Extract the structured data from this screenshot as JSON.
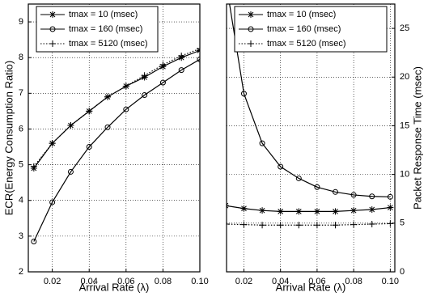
{
  "chart_data": [
    {
      "type": "line",
      "ylabel": "ECR(Energy Consumption Ratio)",
      "xlabel": "Arrival Rate (λ)",
      "x": [
        0.01,
        0.02,
        0.03,
        0.04,
        0.05,
        0.06,
        0.07,
        0.08,
        0.09,
        0.1
      ],
      "xlim": [
        0.007,
        0.1
      ],
      "xticks": [
        0.02,
        0.04,
        0.06,
        0.08,
        {
          "value": 0.1,
          "label": "0.10"
        }
      ],
      "ylim": [
        2,
        9.5
      ],
      "yticks": [
        2,
        3,
        4,
        5,
        6,
        7,
        8,
        9
      ],
      "grid": true,
      "y_axis_position": "left",
      "legend": "upper left",
      "series": [
        {
          "name": "tmax = 10 (msec)",
          "color": "#000000",
          "marker": "asterisk",
          "dash": "solid",
          "values": [
            4.9,
            5.6,
            6.1,
            6.5,
            6.9,
            7.2,
            7.45,
            7.75,
            8.0,
            8.2
          ]
        },
        {
          "name": "tmax = 160 (msec)",
          "color": "#000000",
          "marker": "circle",
          "dash": "solid",
          "values": [
            2.85,
            3.95,
            4.8,
            5.5,
            6.05,
            6.55,
            6.95,
            7.3,
            7.65,
            7.95
          ]
        },
        {
          "name": "tmax = 5120 (msec)",
          "color": "#000000",
          "marker": "plus",
          "dash": "dotted",
          "values": [
            4.95,
            5.6,
            6.1,
            6.5,
            6.9,
            7.2,
            7.5,
            7.8,
            8.05,
            8.25
          ]
        }
      ]
    },
    {
      "type": "line",
      "ylabel": "Packet Response Time (msec)",
      "xlabel": "Arrival Rate (λ)",
      "x": [
        0.01,
        0.02,
        0.03,
        0.04,
        0.05,
        0.06,
        0.07,
        0.08,
        0.09,
        0.1
      ],
      "xlim": [
        0.0105,
        0.1025
      ],
      "xticks": [
        0.02,
        0.04,
        0.06,
        0.08,
        {
          "value": 0.1,
          "label": "0.10"
        }
      ],
      "ylim": [
        0,
        27.5
      ],
      "yticks": [
        0,
        5,
        10,
        15,
        20,
        25
      ],
      "grid": true,
      "y_axis_position": "right",
      "legend": "upper right",
      "series": [
        {
          "name": "tmax = 10 (msec)",
          "color": "#000000",
          "marker": "asterisk",
          "dash": "solid",
          "values": [
            6.8,
            6.5,
            6.3,
            6.2,
            6.2,
            6.2,
            6.2,
            6.3,
            6.4,
            6.6
          ]
        },
        {
          "name": "tmax = 160 (msec)",
          "color": "#000000",
          "marker": "circle",
          "dash": "solid",
          "values": [
            30,
            18.3,
            13.2,
            10.8,
            9.6,
            8.7,
            8.2,
            7.9,
            7.75,
            7.7
          ]
        },
        {
          "name": "tmax = 5120 (msec)",
          "color": "#000000",
          "marker": "plus",
          "dash": "dotted",
          "values": [
            4.9,
            4.85,
            4.8,
            4.8,
            4.8,
            4.8,
            4.8,
            4.85,
            4.9,
            4.95
          ]
        }
      ]
    }
  ]
}
